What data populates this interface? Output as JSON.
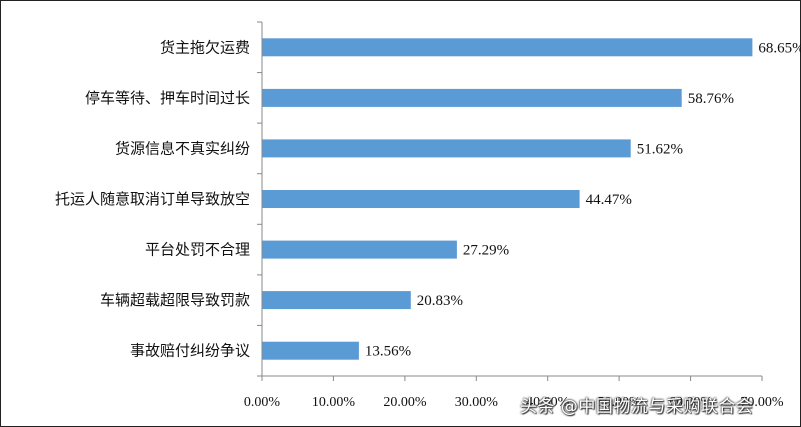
{
  "chart_data": {
    "type": "bar",
    "orientation": "horizontal",
    "categories": [
      "货主拖欠运费",
      "停车等待、押车时间过长",
      "货源信息不真实纠纷",
      "托运人随意取消订单导致放空",
      "平台处罚不合理",
      "车辆超载超限导致罚款",
      "事故赔付纠纷争议"
    ],
    "values": [
      68.65,
      58.76,
      51.62,
      44.47,
      27.29,
      20.83,
      13.56
    ],
    "value_labels": [
      "68.65%",
      "58.76%",
      "51.62%",
      "44.47%",
      "27.29%",
      "20.83%",
      "13.56%"
    ],
    "xlim": [
      0,
      70
    ],
    "x_ticks": [
      "0.00%",
      "10.00%",
      "20.00%",
      "30.00%",
      "40.00%",
      "50.00%",
      "60.00%",
      "70.00%"
    ],
    "title": "",
    "xlabel": "",
    "ylabel": "",
    "grid": false,
    "bar_color": "#5b9bd5"
  },
  "watermark": "头条 @中国物流与采购联合会"
}
